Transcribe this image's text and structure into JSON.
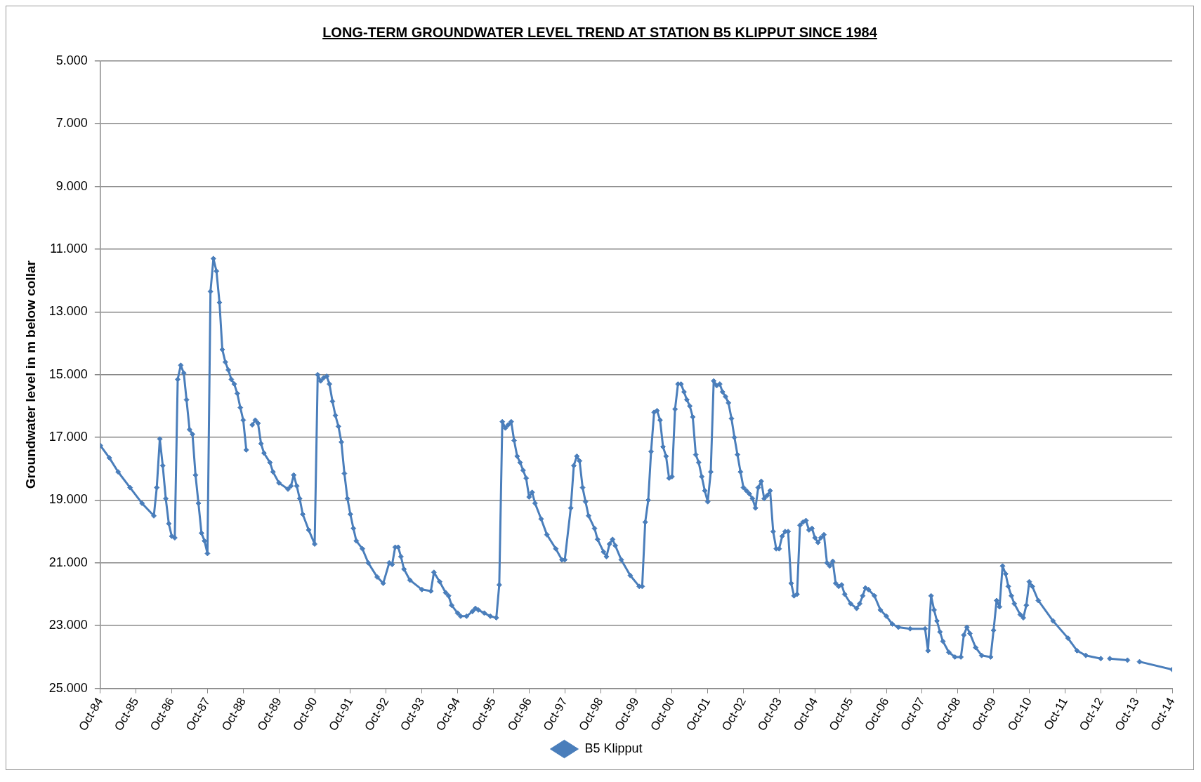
{
  "chart_data": {
    "type": "line",
    "title": "LONG-TERM GROUNDWATER LEVEL TREND AT STATION B5 KLIPPUT SINCE 1984",
    "ylabel": "Groundwater level in m below collar",
    "x": [
      "1984-10",
      "1985-01",
      "1985-04",
      "1985-08",
      "1985-12",
      "1986-04",
      "1986-05",
      "1986-06",
      "1986-07",
      "1986-08",
      "1986-09",
      "1986-10",
      "1986-11",
      "1986-12",
      "1987-01",
      "1987-02",
      "1987-03",
      "1987-04",
      "1987-05",
      "1987-06",
      "1987-07",
      "1987-08",
      "1987-09",
      "1987-10",
      "1987-11",
      "1987-12",
      "1988-01",
      "1988-02",
      "1988-03",
      "1988-04",
      "1988-05",
      "1988-06",
      "1988-07",
      "1988-08",
      "1988-09",
      "1988-10",
      "1988-11",
      "1988-12",
      "1989-01",
      "1989-02",
      "1989-03",
      "1989-04",
      "1989-05",
      "1989-07",
      "1989-08",
      "1989-10",
      "1990-01",
      "1990-02",
      "1990-03",
      "1990-04",
      "1990-05",
      "1990-06",
      "1990-08",
      "1990-10",
      "1990-11",
      "1990-12",
      "1991-01",
      "1991-02",
      "1991-03",
      "1991-04",
      "1991-05",
      "1991-06",
      "1991-07",
      "1991-08",
      "1991-09",
      "1991-10",
      "1991-11",
      "1991-12",
      "1992-02",
      "1992-04",
      "1992-07",
      "1992-09",
      "1992-11",
      "1992-12",
      "1993-01",
      "1993-02",
      "1993-03",
      "1993-04",
      "1993-06",
      "1993-10",
      "1994-01",
      "1994-02",
      "1994-04",
      "1994-06",
      "1994-07",
      "1994-08",
      "1994-10",
      "1994-11",
      "1995-01",
      "1995-03",
      "1995-04",
      "1995-05",
      "1995-07",
      "1995-09",
      "1995-11",
      "1995-12",
      "1996-01",
      "1996-02",
      "1996-03",
      "1996-04",
      "1996-05",
      "1996-06",
      "1996-07",
      "1996-08",
      "1996-09",
      "1996-10",
      "1996-11",
      "1996-12",
      "1997-02",
      "1997-04",
      "1997-07",
      "1997-09",
      "1997-10",
      "1997-12",
      "1998-01",
      "1998-02",
      "1998-03",
      "1998-04",
      "1998-05",
      "1998-06",
      "1998-08",
      "1998-09",
      "1998-11",
      "1998-12",
      "1999-01",
      "1999-02",
      "1999-03",
      "1999-05",
      "1999-08",
      "1999-11",
      "1999-12",
      "2000-01",
      "2000-02",
      "2000-03",
      "2000-04",
      "2000-05",
      "2000-06",
      "2000-07",
      "2000-08",
      "2000-09",
      "2000-10",
      "2000-11",
      "2000-12",
      "2001-01",
      "2001-02",
      "2001-03",
      "2001-04",
      "2001-05",
      "2001-06",
      "2001-07",
      "2001-08",
      "2001-09",
      "2001-10",
      "2001-11",
      "2001-12",
      "2002-01",
      "2002-02",
      "2002-03",
      "2002-04",
      "2002-05",
      "2002-06",
      "2002-07",
      "2002-08",
      "2002-09",
      "2002-10",
      "2002-11",
      "2002-12",
      "2003-01",
      "2003-02",
      "2003-03",
      "2003-04",
      "2003-05",
      "2003-06",
      "2003-07",
      "2003-08",
      "2003-09",
      "2003-10",
      "2003-11",
      "2003-12",
      "2004-01",
      "2004-02",
      "2004-03",
      "2004-04",
      "2004-05",
      "2004-06",
      "2004-07",
      "2004-08",
      "2004-09",
      "2004-10",
      "2004-11",
      "2004-12",
      "2005-01",
      "2005-02",
      "2005-03",
      "2005-04",
      "2005-05",
      "2005-06",
      "2005-07",
      "2005-08",
      "2005-10",
      "2005-12",
      "2006-01",
      "2006-02",
      "2006-03",
      "2006-04",
      "2006-06",
      "2006-08",
      "2006-10",
      "2006-12",
      "2007-02",
      "2007-06",
      "2007-11",
      "2007-12",
      "2008-01",
      "2008-02",
      "2008-03",
      "2008-04",
      "2008-05",
      "2008-07",
      "2008-09",
      "2008-11",
      "2008-12",
      "2009-01",
      "2009-02",
      "2009-04",
      "2009-06",
      "2009-09",
      "2009-10",
      "2009-11",
      "2009-12",
      "2010-01",
      "2010-02",
      "2010-03",
      "2010-04",
      "2010-05",
      "2010-07",
      "2010-08",
      "2010-09",
      "2010-10",
      "2010-11",
      "2011-01",
      "2011-06",
      "2011-11",
      "2012-02",
      "2012-05",
      "2012-10",
      "2012-11",
      "2013-01",
      "2013-07",
      "2013-08",
      "2013-11",
      "2014-10"
    ],
    "series": [
      {
        "name": "B5 Klipput",
        "color": "#4a7ebb",
        "values": [
          17.26,
          17.65,
          18.1,
          18.6,
          19.1,
          19.5,
          18.6,
          17.05,
          17.9,
          18.95,
          19.75,
          20.15,
          20.2,
          15.15,
          14.7,
          14.95,
          15.8,
          16.75,
          16.9,
          18.2,
          19.1,
          20.05,
          20.3,
          20.7,
          12.35,
          11.3,
          11.7,
          12.7,
          14.2,
          14.6,
          14.85,
          15.15,
          15.3,
          15.6,
          16.05,
          16.45,
          17.4,
          null,
          16.6,
          16.45,
          16.55,
          17.2,
          17.5,
          17.8,
          18.1,
          18.45,
          18.65,
          18.55,
          18.2,
          18.55,
          18.95,
          19.45,
          19.95,
          20.4,
          15.0,
          15.2,
          15.1,
          15.05,
          15.3,
          15.85,
          16.3,
          16.65,
          17.15,
          18.15,
          18.95,
          19.45,
          19.9,
          20.3,
          20.55,
          21.0,
          21.45,
          21.65,
          21.0,
          21.05,
          20.5,
          20.5,
          20.8,
          21.2,
          21.55,
          21.85,
          21.9,
          21.3,
          21.6,
          21.95,
          22.05,
          22.35,
          22.6,
          22.7,
          22.7,
          22.55,
          22.45,
          22.5,
          22.6,
          22.7,
          22.75,
          21.7,
          16.5,
          16.7,
          16.6,
          16.5,
          17.1,
          17.6,
          17.8,
          18.05,
          18.3,
          18.9,
          18.75,
          19.1,
          19.6,
          20.1,
          20.55,
          20.9,
          20.9,
          19.25,
          17.9,
          17.6,
          17.75,
          18.6,
          19.05,
          19.5,
          19.9,
          20.25,
          20.65,
          20.8,
          20.4,
          20.25,
          20.45,
          20.9,
          21.4,
          21.75,
          21.75,
          19.7,
          19.0,
          17.45,
          16.2,
          16.15,
          16.45,
          17.3,
          17.6,
          18.3,
          18.25,
          16.1,
          15.3,
          15.3,
          15.55,
          15.8,
          16.0,
          16.35,
          17.55,
          17.8,
          18.25,
          18.7,
          19.05,
          18.1,
          15.2,
          15.35,
          15.3,
          15.55,
          15.7,
          15.9,
          16.4,
          17.0,
          17.55,
          18.1,
          18.6,
          18.7,
          18.8,
          18.95,
          19.25,
          18.6,
          18.4,
          18.95,
          18.85,
          18.7,
          20.0,
          20.55,
          20.55,
          20.15,
          20.0,
          20.0,
          21.65,
          22.05,
          22.0,
          19.8,
          19.7,
          19.65,
          19.95,
          19.9,
          20.2,
          20.35,
          20.2,
          20.1,
          21.0,
          21.1,
          20.95,
          21.65,
          21.75,
          21.7,
          22.0,
          22.3,
          22.45,
          22.3,
          22.05,
          21.8,
          21.85,
          22.05,
          22.5,
          22.7,
          22.95,
          23.05,
          23.1,
          23.1,
          23.8,
          22.05,
          22.5,
          22.85,
          23.2,
          23.5,
          23.85,
          24.0,
          24.0,
          23.3,
          23.05,
          23.25,
          23.7,
          23.95,
          24.0,
          23.15,
          22.2,
          22.4,
          21.1,
          21.35,
          21.75,
          22.05,
          22.3,
          22.65,
          22.75,
          22.35,
          21.6,
          21.75,
          22.2,
          22.85,
          23.4,
          23.8,
          23.95,
          24.05,
          null,
          24.05,
          24.1,
          null,
          24.15,
          24.4
        ]
      }
    ],
    "xlim": [
      "1984-10",
      "2014-10"
    ],
    "xticks": [
      {
        "value": "1984-10",
        "label": "Oct-84"
      },
      {
        "value": "1985-10",
        "label": "Oct-85"
      },
      {
        "value": "1986-10",
        "label": "Oct-86"
      },
      {
        "value": "1987-10",
        "label": "Oct-87"
      },
      {
        "value": "1988-10",
        "label": "Oct-88"
      },
      {
        "value": "1989-10",
        "label": "Oct-89"
      },
      {
        "value": "1990-10",
        "label": "Oct-90"
      },
      {
        "value": "1991-10",
        "label": "Oct-91"
      },
      {
        "value": "1992-10",
        "label": "Oct-92"
      },
      {
        "value": "1993-10",
        "label": "Oct-93"
      },
      {
        "value": "1994-10",
        "label": "Oct-94"
      },
      {
        "value": "1995-10",
        "label": "Oct-95"
      },
      {
        "value": "1996-10",
        "label": "Oct-96"
      },
      {
        "value": "1997-10",
        "label": "Oct-97"
      },
      {
        "value": "1998-10",
        "label": "Oct-98"
      },
      {
        "value": "1999-10",
        "label": "Oct-99"
      },
      {
        "value": "2000-10",
        "label": "Oct-00"
      },
      {
        "value": "2001-10",
        "label": "Oct-01"
      },
      {
        "value": "2002-10",
        "label": "Oct-02"
      },
      {
        "value": "2003-10",
        "label": "Oct-03"
      },
      {
        "value": "2004-10",
        "label": "Oct-04"
      },
      {
        "value": "2005-10",
        "label": "Oct-05"
      },
      {
        "value": "2006-10",
        "label": "Oct-06"
      },
      {
        "value": "2007-10",
        "label": "Oct-07"
      },
      {
        "value": "2008-10",
        "label": "Oct-08"
      },
      {
        "value": "2009-10",
        "label": "Oct-09"
      },
      {
        "value": "2010-10",
        "label": "Oct-10"
      },
      {
        "value": "2011-10",
        "label": "Oct-11"
      },
      {
        "value": "2012-10",
        "label": "Oct-12"
      },
      {
        "value": "2013-10",
        "label": "Oct-13"
      },
      {
        "value": "2014-10",
        "label": "Oct-14"
      }
    ],
    "ylim": [
      25,
      5
    ],
    "yticks": [
      {
        "value": 5,
        "label": "5.000"
      },
      {
        "value": 7,
        "label": "7.000"
      },
      {
        "value": 9,
        "label": "9.000"
      },
      {
        "value": 11,
        "label": "11.000"
      },
      {
        "value": 13,
        "label": "13.000"
      },
      {
        "value": 15,
        "label": "15.000"
      },
      {
        "value": 17,
        "label": "17.000"
      },
      {
        "value": 19,
        "label": "19.000"
      },
      {
        "value": 21,
        "label": "21.000"
      },
      {
        "value": 23,
        "label": "23.000"
      },
      {
        "value": 25,
        "label": "25.000"
      }
    ],
    "grid": "y",
    "legend": "bottom",
    "marker": "diamond",
    "line_style": "solid"
  }
}
